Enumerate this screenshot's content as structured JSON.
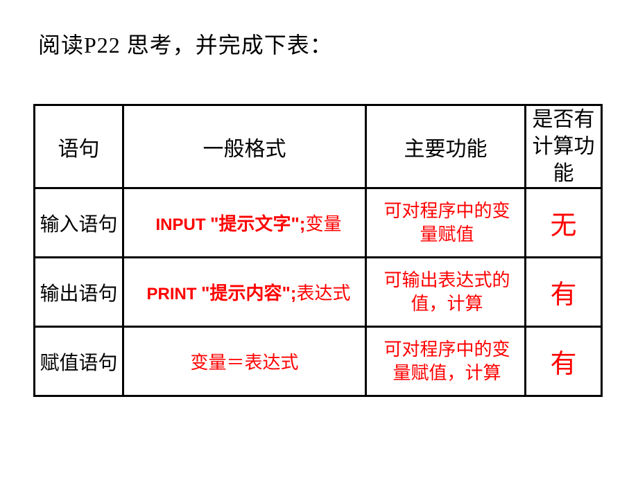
{
  "title": "阅读P22 思考，并完成下表：",
  "headers": {
    "col1": "语句",
    "col2": "一般格式",
    "col3": "主要功能",
    "col4": "是否有计算功能"
  },
  "rows": [
    {
      "stmt": "输入语句",
      "fmt_kw": "INPUT ",
      "fmt_quote": "\"提示文字\";",
      "fmt_rest": "变量",
      "func": "可对程序中的变量赋值",
      "calc": "无"
    },
    {
      "stmt": "输出语句",
      "fmt_kw": "PRINT ",
      "fmt_quote": "\"提示内容\";",
      "fmt_rest": "表达式",
      "func": "可输出表达式的值，计算",
      "calc": "有"
    },
    {
      "stmt": "赋值语句",
      "fmt_kw": "",
      "fmt_quote": "",
      "fmt_rest": "变量＝表达式",
      "func": "可对程序中的变量赋值，计算",
      "calc": "有"
    }
  ],
  "colors": {
    "text_black": "#000000",
    "text_red": "#ff0000",
    "background": "#ffffff",
    "border": "#000000"
  }
}
